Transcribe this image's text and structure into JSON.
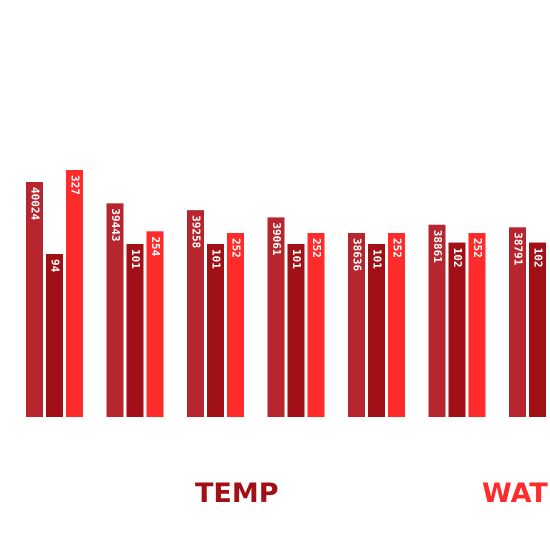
{
  "chart_data": {
    "type": "bar",
    "title": "",
    "xlabel": "",
    "ylabel": "",
    "grid": false,
    "groups": 7,
    "legend_position": "bottom",
    "colors": [
      "#b7262e",
      "#a01016",
      "#ff2a2a"
    ],
    "series": [
      {
        "values": [
          40024,
          39443,
          39258,
          39061,
          38636,
          38861,
          38791
        ],
        "color": "#b7262e"
      },
      {
        "values": [
          94,
          101,
          101,
          101,
          101,
          102,
          102
        ],
        "color": "#a01016"
      },
      {
        "values": [
          327,
          254,
          252,
          252,
          252,
          252,
          null
        ],
        "color": "#ff2a2a"
      }
    ],
    "legend": [
      {
        "label": "TEMP",
        "color": "#a01016"
      },
      {
        "label": "WAT",
        "color": "#ff2a2a"
      }
    ]
  }
}
